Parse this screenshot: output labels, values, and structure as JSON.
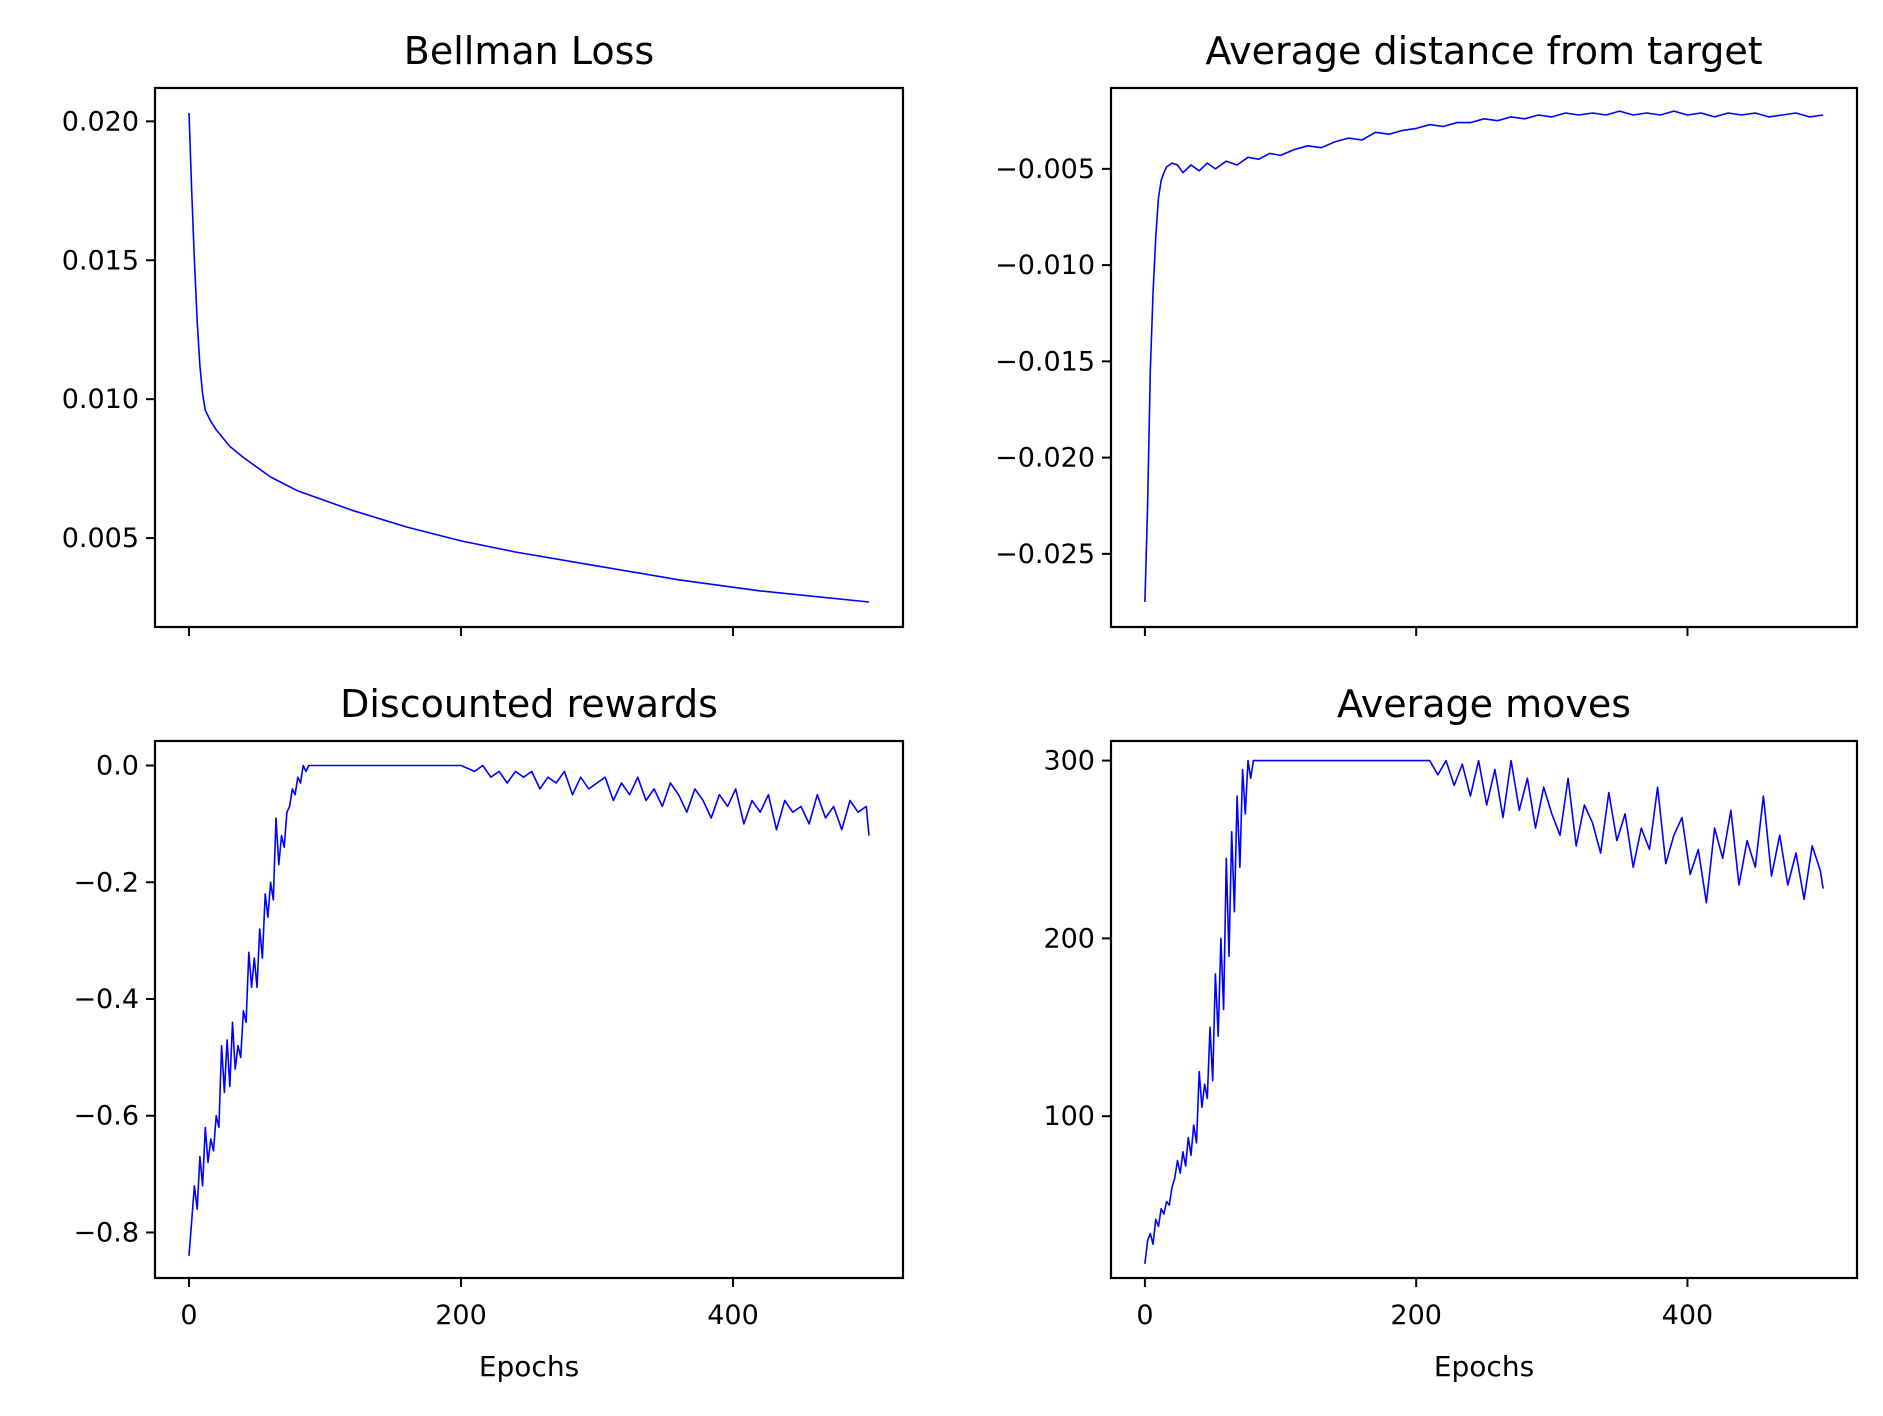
{
  "chart_data": [
    {
      "type": "line",
      "title": "Bellman Loss",
      "xlabel": "",
      "ylabel": "",
      "xlim": [
        -12.5,
        262.5
      ],
      "ylim": [
        0.0018,
        0.0212
      ],
      "xticks": [
        0,
        100,
        200
      ],
      "xtick_labels": [],
      "yticks": [
        0.005,
        0.01,
        0.015,
        0.02
      ],
      "ytick_labels": [
        "0.005",
        "0.010",
        "0.015",
        "0.020"
      ],
      "grid": false,
      "color": "#0000ff",
      "series": [
        {
          "x": [
            0,
            1,
            2,
            3,
            4,
            5,
            6,
            8,
            10,
            15,
            20,
            30,
            40,
            60,
            80,
            100,
            120,
            150,
            180,
            210,
            250
          ],
          "y": [
            0.0203,
            0.0175,
            0.015,
            0.0128,
            0.0112,
            0.0102,
            0.0096,
            0.0092,
            0.0089,
            0.0083,
            0.0079,
            0.0072,
            0.0067,
            0.006,
            0.0054,
            0.0049,
            0.0045,
            0.004,
            0.0035,
            0.0031,
            0.0027
          ]
        }
      ]
    },
    {
      "type": "line",
      "title": "Average distance from target",
      "xlabel": "",
      "ylabel": "",
      "xlim": [
        -12.5,
        262.5
      ],
      "ylim": [
        -0.0288,
        -0.0008
      ],
      "xticks": [
        0,
        100,
        200
      ],
      "xtick_labels": [],
      "yticks": [
        -0.025,
        -0.02,
        -0.015,
        -0.01,
        -0.005
      ],
      "ytick_labels": [
        "−0.025",
        "−0.020",
        "−0.015",
        "−0.010",
        "−0.005"
      ],
      "grid": false,
      "color": "#0000ff",
      "series": [
        {
          "x": [
            0,
            1,
            2,
            3,
            4,
            5,
            6,
            7,
            8,
            10,
            12,
            14,
            17,
            20,
            23,
            26,
            30,
            34,
            38,
            42,
            46,
            50,
            55,
            60,
            65,
            70,
            75,
            80,
            85,
            90,
            95,
            100,
            105,
            110,
            115,
            120,
            125,
            130,
            135,
            140,
            145,
            150,
            155,
            160,
            165,
            170,
            175,
            180,
            185,
            190,
            195,
            200,
            205,
            210,
            215,
            220,
            225,
            230,
            235,
            240,
            245,
            250
          ],
          "y": [
            -0.0275,
            -0.0225,
            -0.0155,
            -0.0115,
            -0.0085,
            -0.0065,
            -0.0056,
            -0.0052,
            -0.0049,
            -0.0047,
            -0.0048,
            -0.0052,
            -0.0048,
            -0.0051,
            -0.0047,
            -0.005,
            -0.0046,
            -0.0048,
            -0.0044,
            -0.0045,
            -0.0042,
            -0.0043,
            -0.004,
            -0.0038,
            -0.0039,
            -0.0036,
            -0.0034,
            -0.0035,
            -0.0031,
            -0.0032,
            -0.003,
            -0.0029,
            -0.0027,
            -0.0028,
            -0.0026,
            -0.0026,
            -0.0024,
            -0.0025,
            -0.0023,
            -0.0024,
            -0.0022,
            -0.0023,
            -0.0021,
            -0.0022,
            -0.0021,
            -0.0022,
            -0.002,
            -0.0022,
            -0.0021,
            -0.0022,
            -0.002,
            -0.0022,
            -0.0021,
            -0.0023,
            -0.0021,
            -0.0022,
            -0.0021,
            -0.0023,
            -0.0022,
            -0.0021,
            -0.0023,
            -0.0022
          ]
        }
      ]
    },
    {
      "type": "line",
      "title": "Discounted rewards",
      "xlabel": "Epochs",
      "ylabel": "",
      "xlim": [
        -12.5,
        262.5
      ],
      "ylim": [
        -0.878,
        0.042
      ],
      "xticks": [
        0,
        100,
        200
      ],
      "xtick_labels": [
        "0",
        "200",
        "400"
      ],
      "yticks": [
        -0.8,
        -0.6,
        -0.4,
        -0.2,
        0.0
      ],
      "ytick_labels": [
        "−0.8",
        "−0.6",
        "−0.4",
        "−0.2",
        "0.0"
      ],
      "grid": false,
      "color": "#0000ff",
      "series": [
        {
          "x": [
            0,
            1,
            2,
            3,
            4,
            5,
            6,
            7,
            8,
            9,
            10,
            11,
            12,
            13,
            14,
            15,
            16,
            17,
            18,
            19,
            20,
            21,
            22,
            23,
            24,
            25,
            26,
            27,
            28,
            29,
            30,
            31,
            32,
            33,
            34,
            35,
            36,
            37,
            38,
            39,
            40,
            41,
            42,
            43,
            44,
            45,
            46,
            47,
            48,
            49,
            50,
            51,
            52,
            53,
            55,
            60,
            70,
            80,
            90,
            100,
            105,
            108,
            111,
            114,
            117,
            120,
            123,
            126,
            129,
            132,
            135,
            138,
            141,
            144,
            147,
            150,
            153,
            156,
            159,
            162,
            165,
            168,
            171,
            174,
            177,
            180,
            183,
            186,
            189,
            192,
            195,
            198,
            201,
            204,
            207,
            210,
            213,
            216,
            219,
            222,
            225,
            228,
            231,
            234,
            237,
            240,
            243,
            246,
            249,
            250
          ],
          "y": [
            -0.84,
            -0.78,
            -0.72,
            -0.76,
            -0.67,
            -0.72,
            -0.62,
            -0.68,
            -0.64,
            -0.66,
            -0.6,
            -0.62,
            -0.48,
            -0.56,
            -0.47,
            -0.55,
            -0.44,
            -0.52,
            -0.48,
            -0.5,
            -0.42,
            -0.44,
            -0.32,
            -0.38,
            -0.33,
            -0.38,
            -0.28,
            -0.33,
            -0.22,
            -0.26,
            -0.2,
            -0.23,
            -0.09,
            -0.17,
            -0.12,
            -0.14,
            -0.08,
            -0.07,
            -0.04,
            -0.05,
            -0.02,
            -0.03,
            0.0,
            -0.01,
            0.0,
            0.0,
            0.0,
            0.0,
            0.0,
            0.0,
            0.0,
            0.0,
            0.0,
            0.0,
            0.0,
            0.0,
            0.0,
            0.0,
            0.0,
            0.0,
            -0.01,
            0.0,
            -0.02,
            -0.01,
            -0.03,
            -0.01,
            -0.02,
            -0.01,
            -0.04,
            -0.02,
            -0.03,
            -0.01,
            -0.05,
            -0.02,
            -0.04,
            -0.03,
            -0.02,
            -0.06,
            -0.03,
            -0.05,
            -0.02,
            -0.06,
            -0.04,
            -0.07,
            -0.03,
            -0.05,
            -0.08,
            -0.04,
            -0.06,
            -0.09,
            -0.05,
            -0.07,
            -0.04,
            -0.1,
            -0.06,
            -0.08,
            -0.05,
            -0.11,
            -0.06,
            -0.08,
            -0.07,
            -0.1,
            -0.05,
            -0.09,
            -0.07,
            -0.11,
            -0.06,
            -0.08,
            -0.07,
            -0.12
          ]
        }
      ]
    },
    {
      "type": "line",
      "title": "Average moves",
      "xlabel": "Epochs",
      "ylabel": "",
      "xlim": [
        -12.5,
        262.5
      ],
      "ylim": [
        9,
        311
      ],
      "xticks": [
        0,
        100,
        200
      ],
      "xtick_labels": [
        "0",
        "200",
        "400"
      ],
      "yticks": [
        100,
        200,
        300
      ],
      "ytick_labels": [
        "100",
        "200",
        "300"
      ],
      "grid": false,
      "color": "#0000ff",
      "series": [
        {
          "x": [
            0,
            1,
            2,
            3,
            4,
            5,
            6,
            7,
            8,
            9,
            10,
            11,
            12,
            13,
            14,
            15,
            16,
            17,
            18,
            19,
            20,
            21,
            22,
            23,
            24,
            25,
            26,
            27,
            28,
            29,
            30,
            31,
            32,
            33,
            34,
            35,
            36,
            37,
            38,
            39,
            40,
            41,
            42,
            43,
            44,
            45,
            46,
            47,
            48,
            49,
            50,
            51,
            52,
            53,
            55,
            60,
            70,
            80,
            90,
            100,
            105,
            108,
            111,
            114,
            117,
            120,
            123,
            126,
            129,
            132,
            135,
            138,
            141,
            144,
            147,
            150,
            153,
            156,
            159,
            162,
            165,
            168,
            171,
            174,
            177,
            180,
            183,
            186,
            189,
            192,
            195,
            198,
            201,
            204,
            207,
            210,
            213,
            216,
            219,
            222,
            225,
            228,
            231,
            234,
            237,
            240,
            243,
            246,
            249,
            250
          ],
          "y": [
            17,
            30,
            34,
            28,
            42,
            38,
            48,
            45,
            52,
            50,
            60,
            65,
            75,
            68,
            80,
            72,
            88,
            78,
            95,
            85,
            125,
            105,
            118,
            110,
            150,
            120,
            180,
            145,
            200,
            160,
            245,
            190,
            260,
            215,
            280,
            240,
            295,
            270,
            300,
            290,
            300,
            300,
            300,
            300,
            300,
            300,
            300,
            300,
            300,
            300,
            300,
            300,
            300,
            300,
            300,
            300,
            300,
            300,
            300,
            300,
            300,
            292,
            300,
            286,
            298,
            280,
            300,
            275,
            295,
            268,
            300,
            272,
            290,
            262,
            285,
            270,
            258,
            290,
            252,
            275,
            265,
            248,
            282,
            255,
            270,
            240,
            262,
            250,
            285,
            242,
            258,
            268,
            236,
            250,
            220,
            262,
            245,
            272,
            230,
            255,
            240,
            280,
            235,
            258,
            230,
            248,
            222,
            252,
            238,
            228
          ]
        }
      ]
    }
  ]
}
